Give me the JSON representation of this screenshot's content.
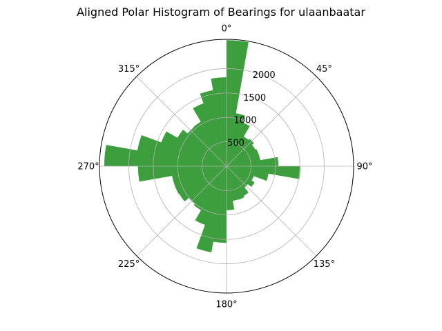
{
  "chart_data": {
    "type": "bar",
    "projection": "polar",
    "title": "Aligned Polar Histogram of Bearings for ulaanbaatar",
    "theta_zero": "north",
    "theta_direction": "clockwise",
    "angle_labels": [
      "0°",
      "45°",
      "90°",
      "135°",
      "180°",
      "225°",
      "270°",
      "315°"
    ],
    "radial_ticks": [
      500,
      1000,
      1500,
      2000
    ],
    "radial_tick_labels": [
      "500",
      "1000",
      "1500",
      "2000"
    ],
    "rmax": 2600,
    "grid": true,
    "bar_color": "#3d9e3d",
    "bin_width_deg": 10,
    "bins_start_deg": [
      0,
      10,
      20,
      30,
      40,
      50,
      60,
      70,
      80,
      90,
      100,
      110,
      120,
      130,
      140,
      150,
      160,
      170,
      180,
      190,
      200,
      210,
      220,
      230,
      240,
      250,
      260,
      270,
      280,
      290,
      300,
      310,
      320,
      330,
      340,
      350
    ],
    "values": [
      2580,
      1100,
      950,
      700,
      730,
      680,
      700,
      700,
      1060,
      1510,
      870,
      590,
      660,
      570,
      700,
      730,
      720,
      900,
      1570,
      1790,
      1280,
      1040,
      1010,
      1120,
      1130,
      1130,
      1810,
      2500,
      1850,
      1420,
      1160,
      1040,
      1050,
      1370,
      1580,
      1820
    ]
  }
}
